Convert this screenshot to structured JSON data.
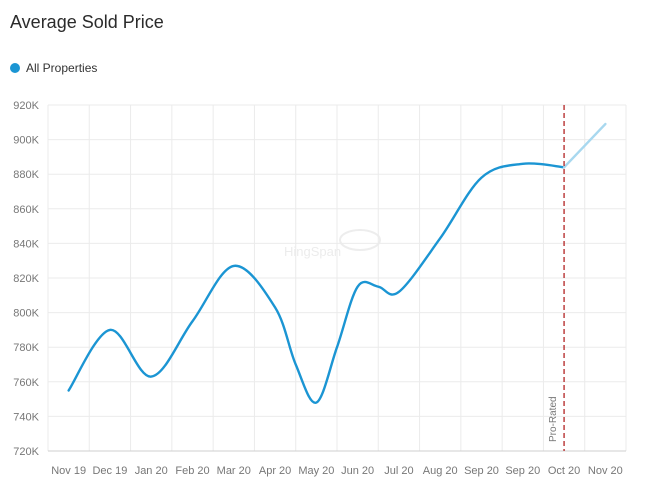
{
  "chart_data": {
    "type": "line",
    "title": "Average Sold Price",
    "legend": "top-left",
    "grid": true,
    "ylim": [
      720000,
      920000
    ],
    "yticks": [
      "720K",
      "740K",
      "760K",
      "780K",
      "800K",
      "820K",
      "840K",
      "860K",
      "880K",
      "900K",
      "920K"
    ],
    "categories": [
      "Nov 19",
      "Dec 19",
      "Jan 20",
      "Feb 20",
      "Mar 20",
      "Apr 20",
      "May 20",
      "Jun 20",
      "Jul 20",
      "Aug 20",
      "Sep 20",
      "Sep 20",
      "Oct 20",
      "Nov 20"
    ],
    "series": [
      {
        "name": "All Properties",
        "color": "#1b95d3",
        "projected_color": "#a8d8ef",
        "x": [
          0,
          1,
          2,
          3,
          4,
          5,
          5.5,
          6,
          6.5,
          7,
          7.5,
          8,
          9,
          10,
          11,
          12,
          13
        ],
        "values": [
          755000,
          790000,
          763000,
          795000,
          827000,
          803000,
          770000,
          748000,
          780000,
          815000,
          815000,
          812000,
          843000,
          878000,
          886000,
          884000,
          909000
        ],
        "projected_from_x": 12
      }
    ],
    "annotations": [
      {
        "text": "Pro-Rated",
        "at_category": "Oct 20",
        "color": "#b22222"
      }
    ]
  },
  "watermark": "HingSpan"
}
